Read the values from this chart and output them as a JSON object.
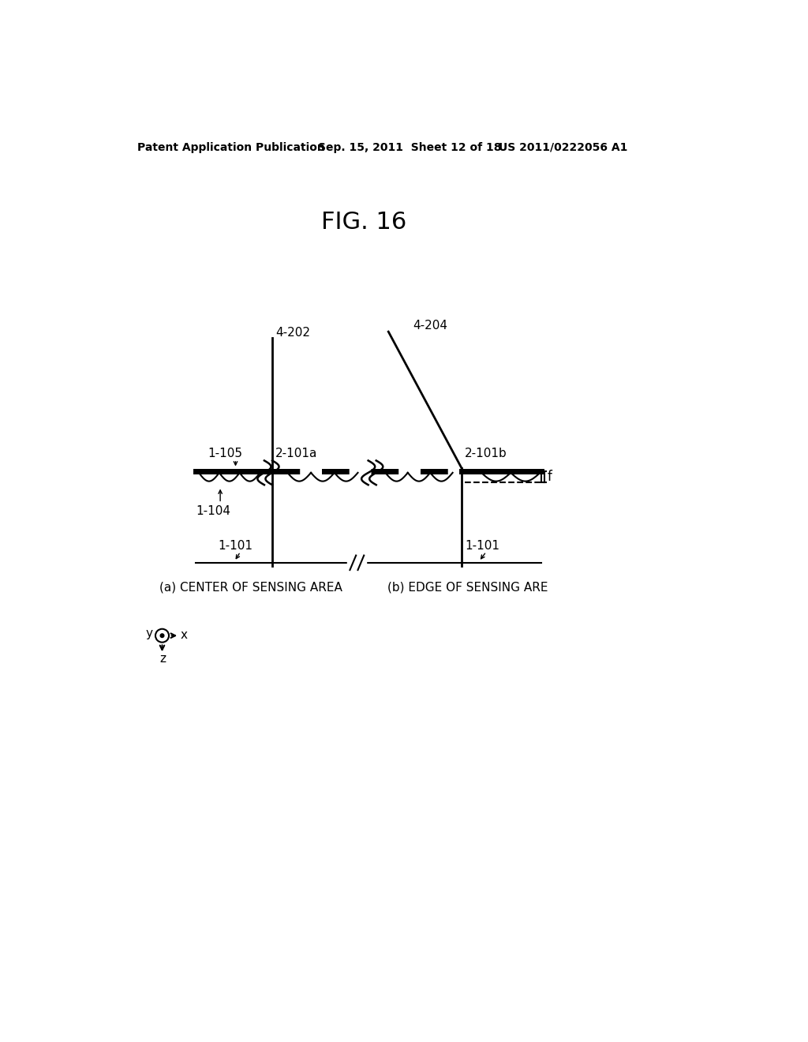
{
  "bg_color": "#ffffff",
  "title": "FIG. 16",
  "header_left": "Patent Application Publication",
  "header_mid": "Sep. 15, 2011  Sheet 12 of 18",
  "header_right": "US 2011/0222056 A1",
  "label_a": "(a) CENTER OF SENSING AREA",
  "label_b": "(b) EDGE OF SENSING ARE",
  "ref_4_202": "4-202",
  "ref_4_204": "4-204",
  "ref_2_101a": "2-101a",
  "ref_2_101b": "2-101b",
  "ref_1_105": "1-105",
  "ref_1_104": "1-104",
  "ref_1_101_a": "1-101",
  "ref_1_101_b": "1-101",
  "ref_f": "f"
}
